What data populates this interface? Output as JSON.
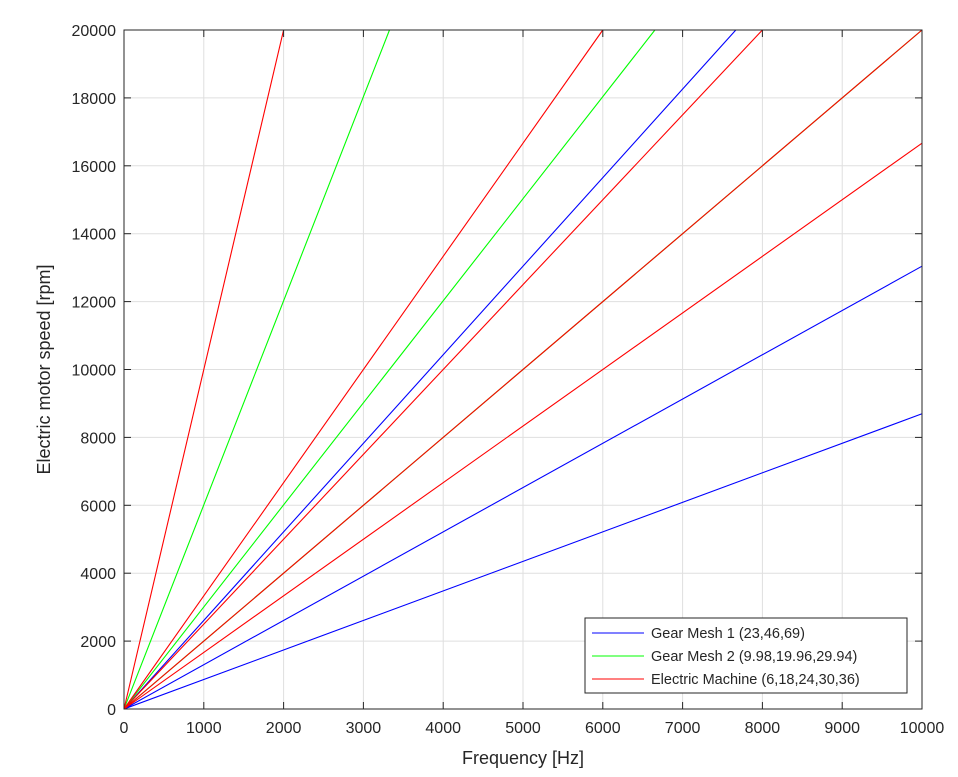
{
  "chart_data": {
    "type": "line",
    "xlabel": "Frequency [Hz]",
    "ylabel": "Electric motor speed [rpm]",
    "xlim": [
      0,
      10000
    ],
    "ylim": [
      0,
      20000
    ],
    "x_ticks": [
      "0",
      "1000",
      "2000",
      "3000",
      "4000",
      "5000",
      "6000",
      "7000",
      "8000",
      "9000",
      "10000"
    ],
    "y_ticks": [
      "0",
      "2000",
      "4000",
      "6000",
      "8000",
      "10000",
      "12000",
      "14000",
      "16000",
      "18000",
      "20000"
    ],
    "grid": true,
    "legend_position": "bottom-right",
    "groups": [
      {
        "name": "Gear Mesh 1 (23,46,69)",
        "color": "#0000ff",
        "series": [
          {
            "x": [
              0,
              7667
            ],
            "y": [
              0,
              20000
            ]
          },
          {
            "x": [
              0,
              10000
            ],
            "y": [
              0,
              13043
            ]
          },
          {
            "x": [
              0,
              10000
            ],
            "y": [
              0,
              8696
            ]
          }
        ]
      },
      {
        "name": "Gear Mesh 2 (9.98,19.96,29.94)",
        "color": "#00ff00",
        "series": [
          {
            "x": [
              0,
              3327
            ],
            "y": [
              0,
              20000
            ]
          },
          {
            "x": [
              0,
              6653
            ],
            "y": [
              0,
              20000
            ]
          },
          {
            "x": [
              0,
              10000
            ],
            "y": [
              0,
              20040
            ]
          }
        ]
      },
      {
        "name": "Electric Machine (6,18,24,30,36)",
        "color": "#ff0000",
        "series": [
          {
            "x": [
              0,
              2000
            ],
            "y": [
              0,
              20000
            ]
          },
          {
            "x": [
              0,
              6000
            ],
            "y": [
              0,
              20000
            ]
          },
          {
            "x": [
              0,
              8000
            ],
            "y": [
              0,
              20000
            ]
          },
          {
            "x": [
              0,
              10000
            ],
            "y": [
              0,
              20000
            ]
          },
          {
            "x": [
              0,
              10000
            ],
            "y": [
              0,
              16667
            ]
          }
        ]
      }
    ]
  }
}
